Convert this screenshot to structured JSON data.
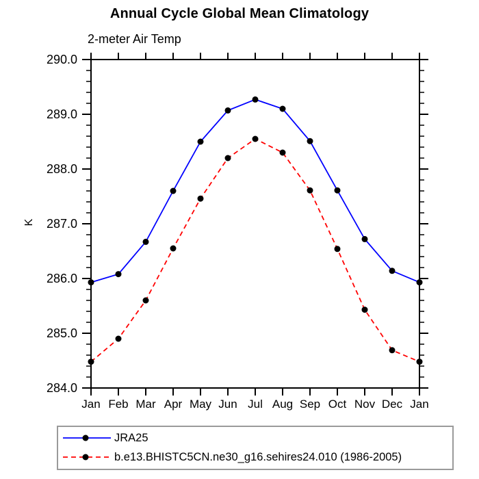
{
  "chart_data": {
    "type": "line",
    "title": "Annual Cycle Global Mean Climatology",
    "subtitle": "2-meter Air Temp",
    "ylabel": "K",
    "categories": [
      "Jan",
      "Feb",
      "Mar",
      "Apr",
      "May",
      "Jun",
      "Jul",
      "Aug",
      "Sep",
      "Oct",
      "Nov",
      "Dec",
      "Jan"
    ],
    "ylim": [
      284.0,
      290.0
    ],
    "ytick_labels": [
      "284.0",
      "285.0",
      "286.0",
      "287.0",
      "288.0",
      "289.0",
      "290.0"
    ],
    "ytick_minor_step": 0.2,
    "grid": false,
    "legend_position": "bottom-left",
    "axis_color": "#000000",
    "marker_color": "#000000",
    "series": [
      {
        "name": "JRA25",
        "color": "#0000ff",
        "style": "solid",
        "marker": "circle",
        "values": [
          285.93,
          286.08,
          286.67,
          287.6,
          288.5,
          289.07,
          289.27,
          289.1,
          288.51,
          287.61,
          286.72,
          286.14,
          285.93
        ]
      },
      {
        "name": "b.e13.BHISTC5CN.ne30_g16.sehires24.010 (1986-2005)",
        "color": "#ff0000",
        "style": "dashed",
        "marker": "circle",
        "values": [
          284.48,
          284.9,
          285.6,
          286.55,
          287.46,
          288.2,
          288.55,
          288.3,
          287.61,
          286.54,
          285.43,
          284.69,
          284.48
        ]
      }
    ]
  }
}
